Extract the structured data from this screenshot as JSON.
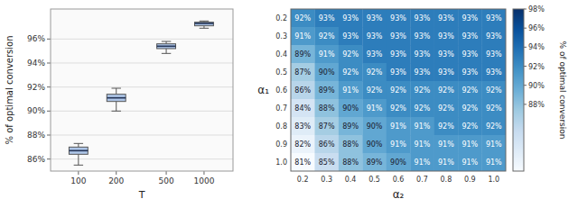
{
  "chart_data": [
    {
      "type": "box",
      "x_label": "T",
      "y_label": "% of optimal conversion",
      "x": [
        100,
        200,
        500,
        1000
      ],
      "boxes": [
        {
          "q1": 86.4,
          "median": 86.7,
          "q3": 87.0,
          "whislo": 85.5,
          "whishi": 87.3
        },
        {
          "q1": 90.8,
          "median": 91.1,
          "q3": 91.4,
          "whislo": 90.0,
          "whishi": 91.9
        },
        {
          "q1": 95.2,
          "median": 95.4,
          "q3": 95.6,
          "whislo": 94.8,
          "whishi": 95.8
        },
        {
          "q1": 97.1,
          "median": 97.3,
          "q3": 97.4,
          "whislo": 96.9,
          "whishi": 97.5
        }
      ],
      "log": "x",
      "xlim": [
        60,
        1700
      ],
      "xticks": [
        100,
        200,
        500,
        1000
      ],
      "ylim": [
        85.0,
        98.5
      ],
      "yticks": [
        {
          "value": 86,
          "label": "86%"
        },
        {
          "value": 88,
          "label": "88%"
        },
        {
          "value": 90,
          "label": "90%"
        },
        {
          "value": 92,
          "label": "92%"
        },
        {
          "value": 94,
          "label": "94%"
        },
        {
          "value": 96,
          "label": "96%"
        }
      ],
      "grid": true,
      "color": "#aec6e8"
    },
    {
      "type": "heatmap",
      "x_label": "α₂",
      "y_label": "α₁",
      "categories": [
        "0.2",
        "0.3",
        "0.4",
        "0.5",
        "0.6",
        "0.7",
        "0.8",
        "0.9",
        "1.0"
      ],
      "y_categories": [
        "0.2",
        "0.3",
        "0.4",
        "0.5",
        "0.6",
        "0.7",
        "0.8",
        "0.9",
        "1.0"
      ],
      "values": [
        [
          92,
          93,
          93,
          93,
          93,
          93,
          93,
          93,
          93
        ],
        [
          91,
          92,
          93,
          93,
          93,
          93,
          93,
          93,
          93
        ],
        [
          89,
          91,
          92,
          93,
          93,
          93,
          93,
          93,
          93
        ],
        [
          87,
          90,
          92,
          92,
          93,
          93,
          93,
          93,
          93
        ],
        [
          86,
          89,
          91,
          92,
          92,
          92,
          92,
          92,
          92
        ],
        [
          84,
          88,
          90,
          91,
          92,
          92,
          92,
          92,
          92
        ],
        [
          83,
          87,
          89,
          90,
          91,
          91,
          92,
          92,
          92
        ],
        [
          82,
          86,
          88,
          90,
          91,
          91,
          91,
          91,
          91
        ],
        [
          81,
          85,
          88,
          89,
          90,
          91,
          91,
          91,
          91
        ]
      ],
      "value_labels": [
        [
          "92%",
          "93%",
          "93%",
          "93%",
          "93%",
          "93%",
          "93%",
          "93%",
          "93%"
        ],
        [
          "91%",
          "92%",
          "93%",
          "93%",
          "93%",
          "93%",
          "93%",
          "93%",
          "93%"
        ],
        [
          "89%",
          "91%",
          "92%",
          "93%",
          "93%",
          "93%",
          "93%",
          "93%",
          "93%"
        ],
        [
          "87%",
          "90%",
          "92%",
          "92%",
          "93%",
          "93%",
          "93%",
          "93%",
          "93%"
        ],
        [
          "86%",
          "89%",
          "91%",
          "92%",
          "92%",
          "92%",
          "92%",
          "92%",
          "92%"
        ],
        [
          "84%",
          "88%",
          "90%",
          "91%",
          "92%",
          "92%",
          "92%",
          "92%",
          "92%"
        ],
        [
          "83%",
          "87%",
          "89%",
          "90%",
          "91%",
          "91%",
          "92%",
          "92%",
          "92%"
        ],
        [
          "82%",
          "86%",
          "88%",
          "90%",
          "91%",
          "91%",
          "91%",
          "91%",
          "91%"
        ],
        [
          "81%",
          "85%",
          "88%",
          "89%",
          "90%",
          "91%",
          "91%",
          "91%",
          "91%"
        ]
      ],
      "data_labels": true,
      "color_range": [
        81,
        98
      ],
      "color_ticks": [
        {
          "value": 88,
          "label": "88%"
        },
        {
          "value": 90,
          "label": "90%"
        },
        {
          "value": 92,
          "label": "92%"
        },
        {
          "value": 94,
          "label": "94%"
        },
        {
          "value": 96,
          "label": "96%"
        },
        {
          "value": 98,
          "label": "98%"
        }
      ],
      "color_label": "% of optimal conversion"
    }
  ]
}
